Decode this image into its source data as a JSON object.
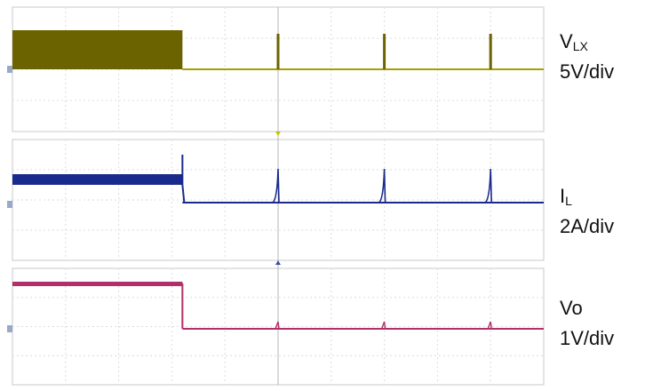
{
  "chart_data": [
    {
      "type": "line",
      "series": [
        {
          "name_main": "V",
          "name_sub": "LX",
          "scale": "5V/div",
          "color": "#6b6300"
        }
      ],
      "waveform": {
        "high_until_div": 3.2,
        "spikes_at_div": [
          5.0,
          7.0,
          9.0
        ]
      }
    },
    {
      "type": "line",
      "series": [
        {
          "name_main": "I",
          "name_sub": "L",
          "scale": "2A/div",
          "color": "#1a2a8c"
        }
      ],
      "waveform": {
        "high_until_div": 3.2,
        "spikes_at_div": [
          5.0,
          7.0,
          9.0
        ]
      }
    },
    {
      "type": "line",
      "series": [
        {
          "name_main": "Vo",
          "name_sub": "",
          "scale": "1V/div",
          "color": "#b0306a"
        }
      ],
      "waveform": {
        "high_until_div": 3.2,
        "spikes_at_div": [
          5.0,
          7.0,
          9.0
        ]
      }
    }
  ],
  "grid": {
    "divisions_x": 10,
    "divisions_y_per_panel": 4
  }
}
